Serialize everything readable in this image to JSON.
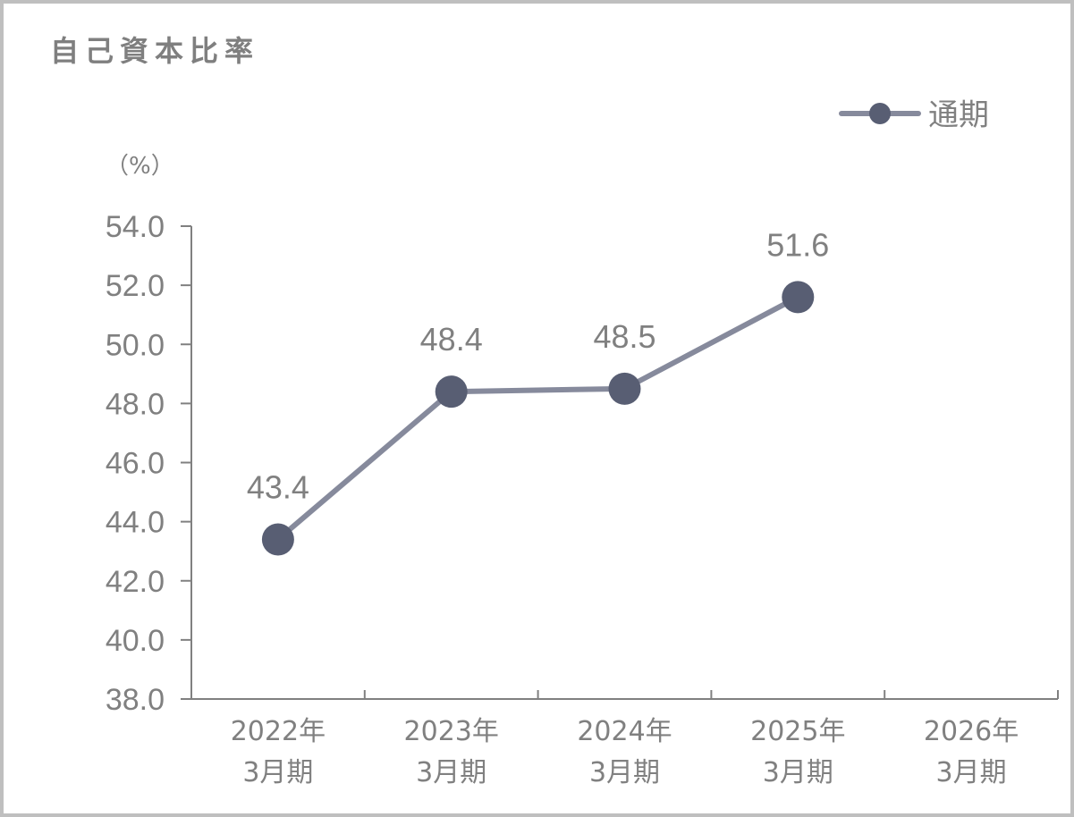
{
  "title": "自己資本比率",
  "unit": "（%）",
  "legend": {
    "label": "通期"
  },
  "colors": {
    "line": "#868a9c",
    "marker": "#585e73",
    "axis": "#808080",
    "text": "#808080",
    "border": "#bfbfbf"
  },
  "chart_data": {
    "type": "line",
    "title": "自己資本比率",
    "xlabel": "",
    "ylabel": "（%）",
    "categories": [
      [
        "2022年",
        "3月期"
      ],
      [
        "2023年",
        "3月期"
      ],
      [
        "2024年",
        "3月期"
      ],
      [
        "2025年",
        "3月期"
      ],
      [
        "2026年",
        "3月期"
      ]
    ],
    "series": [
      {
        "name": "通期",
        "values": [
          43.4,
          48.4,
          48.5,
          51.6,
          null
        ],
        "labels": [
          "43.4",
          "48.4",
          "48.5",
          "51.6",
          null
        ]
      }
    ],
    "ylim": [
      38.0,
      54.0
    ],
    "yticks": [
      38.0,
      40.0,
      42.0,
      44.0,
      46.0,
      48.0,
      50.0,
      52.0,
      54.0
    ],
    "ytick_labels": [
      "38.0",
      "40.0",
      "42.0",
      "44.0",
      "46.0",
      "48.0",
      "50.0",
      "52.0",
      "54.0"
    ],
    "grid": false,
    "legend_position": "top-right"
  }
}
